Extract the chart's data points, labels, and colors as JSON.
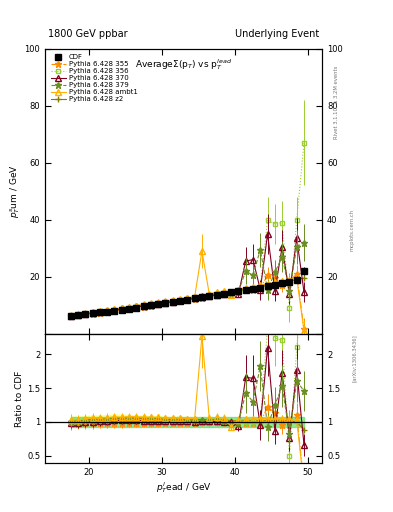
{
  "title_left": "1800 GeV ppbar",
  "title_right": "Underlying Event",
  "plot_title": "AverageΣ(p_T) vs p_T^{lead}",
  "xlabel": "p_T^{l}ead / GeV",
  "ylabel_main": "p_T^{s}um / GeV",
  "ylabel_ratio": "Ratio to CDF",
  "xlim": [
    14,
    52
  ],
  "ylim_main": [
    0,
    100
  ],
  "ylim_ratio": [
    0.39,
    2.3
  ],
  "xticks": [
    20,
    30,
    40,
    50
  ],
  "yticks_main": [
    0,
    20,
    40,
    60,
    80,
    100
  ],
  "yticks_ratio": [
    0.5,
    1.0,
    1.5,
    2.0
  ],
  "color_cdf": "#000000",
  "color_355": "#FF8C00",
  "color_356": "#9ACD32",
  "color_370": "#800020",
  "color_379": "#6B8E23",
  "color_ambt1": "#FFB000",
  "color_z2": "#808000",
  "ratio_green_lo": 0.92,
  "ratio_green_hi": 1.08,
  "ratio_yellow_lo": 0.85,
  "ratio_yellow_hi": 1.15
}
